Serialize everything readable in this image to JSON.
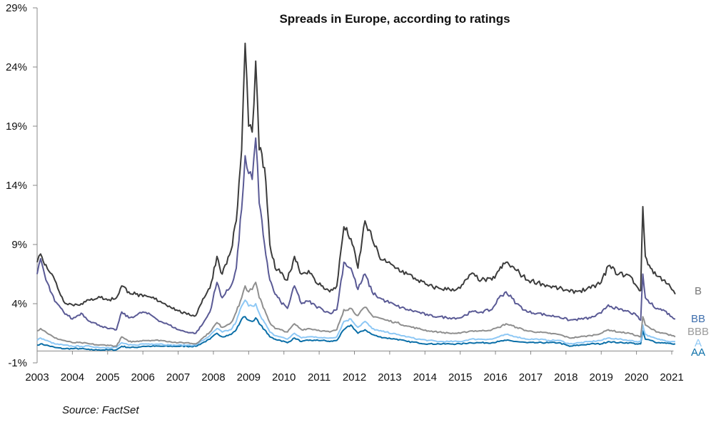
{
  "chart_data": {
    "type": "line",
    "title": "Spreads in Europe, according to ratings",
    "source": "Source: FactSet",
    "xlabel": "",
    "ylabel": "",
    "xlim": [
      2003,
      2021.15
    ],
    "ylim": [
      -1,
      29
    ],
    "grid": false,
    "legend": "inline-right",
    "y_ticks": [
      -1,
      4,
      9,
      14,
      19,
      24,
      29
    ],
    "y_tick_labels": [
      "-1%",
      "4%",
      "9%",
      "14%",
      "19%",
      "24%",
      "29%"
    ],
    "x_ticks": [
      2003,
      2004,
      2005,
      2006,
      2007,
      2008,
      2009,
      2010,
      2011,
      2012,
      2013,
      2014,
      2015,
      2016,
      2017,
      2018,
      2019,
      2020,
      2021
    ],
    "x_tick_labels": [
      "2003",
      "2004",
      "2005",
      "2006",
      "2007",
      "2008",
      "2009",
      "2010",
      "2011",
      "2012",
      "2013",
      "2014",
      "2015",
      "2016",
      "2017",
      "2018",
      "2019",
      "2020",
      "2021"
    ],
    "x": [
      2003.0,
      2003.1,
      2003.25,
      2003.5,
      2003.75,
      2004.0,
      2004.25,
      2004.5,
      2004.75,
      2005.0,
      2005.25,
      2005.4,
      2005.6,
      2005.8,
      2006.0,
      2006.25,
      2006.5,
      2006.75,
      2007.0,
      2007.25,
      2007.5,
      2007.7,
      2007.9,
      2008.1,
      2008.25,
      2008.5,
      2008.65,
      2008.8,
      2008.9,
      2009.0,
      2009.1,
      2009.2,
      2009.3,
      2009.45,
      2009.6,
      2009.75,
      2009.9,
      2010.1,
      2010.3,
      2010.5,
      2010.7,
      2010.9,
      2011.1,
      2011.3,
      2011.5,
      2011.7,
      2011.9,
      2012.1,
      2012.3,
      2012.5,
      2012.7,
      2012.9,
      2013.2,
      2013.5,
      2013.8,
      2014.1,
      2014.4,
      2014.7,
      2015.0,
      2015.3,
      2015.6,
      2015.9,
      2016.1,
      2016.3,
      2016.6,
      2016.9,
      2017.2,
      2017.5,
      2017.8,
      2018.1,
      2018.4,
      2018.7,
      2019.0,
      2019.2,
      2019.5,
      2019.8,
      2020.0,
      2020.12,
      2020.18,
      2020.25,
      2020.4,
      2020.6,
      2020.8,
      2021.0,
      2021.1
    ],
    "series": [
      {
        "name": "B",
        "color": "#3c3c3c",
        "label_color": "#777777",
        "values": [
          7.5,
          8.2,
          7.3,
          6.0,
          4.2,
          3.9,
          4.0,
          4.3,
          4.6,
          4.3,
          4.5,
          5.5,
          5.0,
          4.8,
          4.6,
          4.5,
          4.2,
          3.8,
          3.4,
          3.1,
          3.0,
          4.4,
          5.3,
          8.0,
          6.5,
          8.5,
          11.0,
          17.0,
          26.0,
          19.0,
          18.5,
          24.5,
          17.0,
          15.5,
          9.0,
          7.0,
          6.6,
          6.0,
          8.0,
          6.5,
          6.8,
          5.8,
          5.5,
          5.0,
          5.5,
          10.5,
          9.5,
          7.0,
          11.0,
          9.5,
          8.0,
          7.5,
          7.0,
          6.5,
          6.0,
          5.5,
          5.3,
          5.2,
          5.3,
          6.5,
          6.0,
          6.0,
          6.8,
          7.5,
          6.8,
          6.0,
          5.8,
          5.5,
          5.3,
          5.0,
          5.1,
          5.3,
          5.8,
          7.2,
          6.5,
          6.4,
          5.5,
          5.1,
          12.2,
          8.0,
          7.0,
          6.3,
          6.0,
          5.2,
          4.8
        ]
      },
      {
        "name": "BB",
        "color": "#5a5a95",
        "label_color": "#3f6fad",
        "values": [
          6.5,
          7.8,
          6.0,
          4.2,
          3.3,
          2.7,
          3.2,
          2.5,
          2.2,
          1.9,
          1.8,
          3.3,
          2.8,
          3.0,
          3.3,
          3.0,
          2.5,
          2.2,
          1.8,
          1.6,
          1.5,
          2.3,
          3.3,
          5.8,
          4.5,
          5.5,
          7.0,
          12.0,
          16.5,
          15.0,
          14.5,
          18.0,
          12.5,
          9.0,
          6.0,
          4.8,
          4.2,
          3.6,
          5.5,
          4.0,
          4.2,
          3.8,
          3.5,
          3.2,
          3.5,
          7.5,
          7.0,
          5.2,
          6.5,
          5.0,
          4.5,
          4.2,
          3.8,
          3.5,
          3.3,
          3.0,
          2.9,
          2.8,
          2.8,
          3.3,
          3.3,
          3.5,
          4.5,
          5.0,
          4.0,
          3.3,
          3.2,
          3.0,
          2.9,
          2.6,
          2.7,
          2.8,
          3.2,
          3.9,
          3.5,
          3.3,
          3.0,
          2.6,
          6.5,
          4.5,
          4.0,
          3.6,
          3.4,
          2.9,
          2.7
        ]
      },
      {
        "name": "BBB",
        "color": "#8f8f8f",
        "label_color": "#9b9b9b",
        "values": [
          1.7,
          1.9,
          1.6,
          1.1,
          0.9,
          0.7,
          0.7,
          0.6,
          0.5,
          0.5,
          0.4,
          1.2,
          0.8,
          0.8,
          0.9,
          0.9,
          0.9,
          0.8,
          0.7,
          0.7,
          0.6,
          1.1,
          1.6,
          2.4,
          2.0,
          2.4,
          3.3,
          4.5,
          5.5,
          5.0,
          5.2,
          5.8,
          4.5,
          3.5,
          2.4,
          1.9,
          1.8,
          1.6,
          2.3,
          1.8,
          1.9,
          1.8,
          1.7,
          1.6,
          1.8,
          3.5,
          3.6,
          3.0,
          3.7,
          3.0,
          2.8,
          2.6,
          2.4,
          2.1,
          1.9,
          1.7,
          1.6,
          1.5,
          1.5,
          1.7,
          1.7,
          1.8,
          2.0,
          2.3,
          2.0,
          1.7,
          1.6,
          1.5,
          1.4,
          1.1,
          1.2,
          1.3,
          1.5,
          1.8,
          1.6,
          1.5,
          1.3,
          1.2,
          2.9,
          2.2,
          1.9,
          1.6,
          1.5,
          1.3,
          1.2
        ]
      },
      {
        "name": "A",
        "color": "#8ec8f5",
        "label_color": "#8ec8f5",
        "values": [
          0.9,
          1.1,
          0.9,
          0.6,
          0.5,
          0.4,
          0.4,
          0.4,
          0.3,
          0.3,
          0.3,
          0.7,
          0.5,
          0.5,
          0.6,
          0.6,
          0.6,
          0.5,
          0.5,
          0.5,
          0.5,
          0.9,
          1.3,
          1.9,
          1.6,
          1.8,
          2.5,
          3.8,
          4.3,
          3.8,
          3.8,
          4.0,
          3.2,
          2.4,
          1.6,
          1.3,
          1.2,
          1.0,
          1.5,
          1.1,
          1.2,
          1.2,
          1.1,
          1.1,
          1.2,
          2.5,
          2.7,
          2.0,
          2.5,
          1.9,
          1.7,
          1.6,
          1.4,
          1.2,
          1.0,
          0.9,
          0.8,
          0.8,
          0.8,
          1.0,
          1.0,
          1.0,
          1.2,
          1.4,
          1.2,
          1.0,
          1.0,
          0.9,
          0.9,
          0.6,
          0.7,
          0.8,
          0.9,
          1.1,
          1.0,
          0.9,
          0.8,
          0.8,
          2.2,
          1.4,
          1.2,
          1.0,
          0.9,
          0.8,
          0.8
        ]
      },
      {
        "name": "AA",
        "color": "#0b6fa8",
        "label_color": "#0b6fa8",
        "values": [
          0.5,
          0.6,
          0.5,
          0.3,
          0.2,
          0.2,
          0.2,
          0.1,
          0.1,
          0.1,
          0.1,
          0.4,
          0.3,
          0.3,
          0.4,
          0.4,
          0.4,
          0.4,
          0.4,
          0.4,
          0.4,
          0.7,
          1.0,
          1.5,
          1.2,
          1.4,
          1.8,
          2.7,
          2.9,
          2.6,
          2.5,
          2.8,
          2.3,
          1.8,
          1.2,
          1.0,
          0.9,
          0.7,
          1.1,
          0.8,
          0.9,
          0.9,
          0.9,
          0.8,
          0.9,
          1.8,
          2.2,
          1.5,
          1.8,
          1.4,
          1.2,
          1.1,
          1.0,
          0.8,
          0.7,
          0.6,
          0.6,
          0.6,
          0.6,
          0.7,
          0.7,
          0.7,
          0.8,
          0.9,
          0.8,
          0.7,
          0.7,
          0.7,
          0.7,
          0.4,
          0.5,
          0.6,
          0.6,
          0.8,
          0.7,
          0.7,
          0.6,
          0.6,
          1.7,
          1.0,
          0.9,
          0.7,
          0.7,
          0.6,
          0.6
        ]
      }
    ]
  }
}
